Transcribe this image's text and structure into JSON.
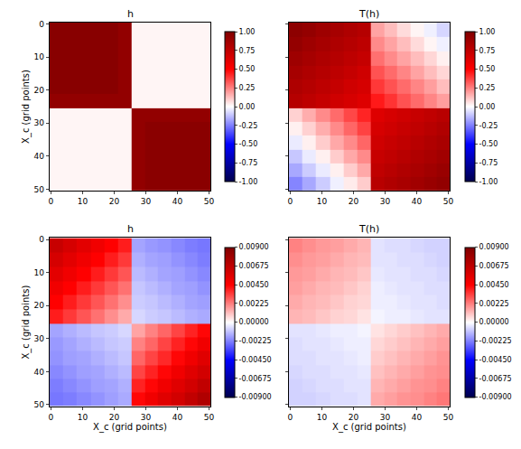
{
  "chart_data": [
    {
      "type": "heatmap",
      "title": "h",
      "ylabel": "X_c (grid points)",
      "grid": false,
      "x_edges": [
        -0.5,
        3.8,
        8.2,
        12.5,
        16.8,
        21.2,
        25.5,
        29.7,
        33.8,
        38.0,
        42.2,
        46.3,
        50.5
      ],
      "y_edges": [
        -0.5,
        3.8,
        8.2,
        12.5,
        16.8,
        21.2,
        25.5,
        29.7,
        33.8,
        38.0,
        42.2,
        46.3,
        50.5
      ],
      "xlim": [
        -0.5,
        50.5
      ],
      "ylim": [
        50.5,
        -0.5
      ],
      "xticks": [
        0,
        10,
        20,
        30,
        40,
        50
      ],
      "yticks": [
        0,
        10,
        20,
        30,
        40,
        50
      ],
      "colorbar_range": [
        -1,
        1
      ],
      "colorbar_ticks": [
        {
          "value": -1,
          "label": "-1.00"
        },
        {
          "value": -0.75,
          "label": "-0.75"
        },
        {
          "value": -0.5,
          "label": "-0.50"
        },
        {
          "value": -0.25,
          "label": "-0.25"
        },
        {
          "value": 0,
          "label": "0.00"
        },
        {
          "value": 0.25,
          "label": "0.25"
        },
        {
          "value": 0.5,
          "label": "0.50"
        },
        {
          "value": 0.75,
          "label": "0.75"
        },
        {
          "value": 1,
          "label": "1.00"
        }
      ],
      "z": [
        [
          0.97,
          0.97,
          0.97,
          0.97,
          0.97,
          0.93,
          0.02,
          0.02,
          0.02,
          0.02,
          0.02,
          0.02
        ],
        [
          0.97,
          0.97,
          0.97,
          0.97,
          0.97,
          0.93,
          0.02,
          0.02,
          0.02,
          0.02,
          0.02,
          0.02
        ],
        [
          0.97,
          0.97,
          0.97,
          0.97,
          0.97,
          0.93,
          0.02,
          0.02,
          0.02,
          0.02,
          0.02,
          0.02
        ],
        [
          0.97,
          0.97,
          0.97,
          0.97,
          0.97,
          0.93,
          0.02,
          0.02,
          0.02,
          0.02,
          0.02,
          0.02
        ],
        [
          0.97,
          0.97,
          0.97,
          0.97,
          0.97,
          0.93,
          0.02,
          0.02,
          0.02,
          0.02,
          0.02,
          0.02
        ],
        [
          0.93,
          0.93,
          0.93,
          0.93,
          0.93,
          0.93,
          0.02,
          0.02,
          0.02,
          0.02,
          0.02,
          0.02
        ],
        [
          0.02,
          0.02,
          0.02,
          0.02,
          0.02,
          0.02,
          0.93,
          0.93,
          0.93,
          0.93,
          0.93,
          0.93
        ],
        [
          0.02,
          0.02,
          0.02,
          0.02,
          0.02,
          0.02,
          0.93,
          0.96,
          0.96,
          0.96,
          0.96,
          0.96
        ],
        [
          0.02,
          0.02,
          0.02,
          0.02,
          0.02,
          0.02,
          0.93,
          0.96,
          0.96,
          0.96,
          0.96,
          0.96
        ],
        [
          0.02,
          0.02,
          0.02,
          0.02,
          0.02,
          0.02,
          0.93,
          0.96,
          0.96,
          0.96,
          0.96,
          0.96
        ],
        [
          0.02,
          0.02,
          0.02,
          0.02,
          0.02,
          0.02,
          0.93,
          0.96,
          0.96,
          0.96,
          0.96,
          0.96
        ],
        [
          0.02,
          0.02,
          0.02,
          0.02,
          0.02,
          0.02,
          0.93,
          0.96,
          0.96,
          0.96,
          0.96,
          0.96
        ]
      ]
    },
    {
      "type": "heatmap",
      "title": "T(h)",
      "grid": false,
      "tick_labels": "x",
      "x_edges": [
        -0.5,
        3.8,
        8.2,
        12.5,
        16.8,
        21.2,
        25.5,
        29.7,
        33.8,
        38.0,
        42.2,
        46.3,
        50.5
      ],
      "y_edges": [
        -0.5,
        3.8,
        8.2,
        12.5,
        16.8,
        21.2,
        25.5,
        29.7,
        33.8,
        38.0,
        42.2,
        46.3,
        50.5
      ],
      "xlim": [
        -0.5,
        50.5
      ],
      "ylim": [
        50.5,
        -0.5
      ],
      "xticks": [
        0,
        10,
        20,
        30,
        40,
        50
      ],
      "yticks": [
        0,
        10,
        20,
        30,
        40,
        50
      ],
      "colorbar_range": [
        -1,
        1
      ],
      "colorbar_ticks": [
        {
          "value": -1,
          "label": "-1.00"
        },
        {
          "value": -0.75,
          "label": "-0.75"
        },
        {
          "value": -0.5,
          "label": "-0.50"
        },
        {
          "value": -0.25,
          "label": "-0.25"
        },
        {
          "value": 0,
          "label": "0.00"
        },
        {
          "value": 0.25,
          "label": "0.25"
        },
        {
          "value": 0.5,
          "label": "0.50"
        },
        {
          "value": 0.75,
          "label": "0.75"
        },
        {
          "value": 1,
          "label": "1.00"
        }
      ],
      "z": [
        [
          0.95,
          0.92,
          0.88,
          0.85,
          0.82,
          0.79,
          0.18,
          0.13,
          0.07,
          0.02,
          -0.03,
          -0.08
        ],
        [
          0.92,
          0.88,
          0.85,
          0.82,
          0.79,
          0.76,
          0.23,
          0.18,
          0.13,
          0.07,
          0.02,
          -0.03
        ],
        [
          0.88,
          0.85,
          0.82,
          0.79,
          0.76,
          0.73,
          0.28,
          0.23,
          0.18,
          0.13,
          0.08,
          0.03
        ],
        [
          0.85,
          0.82,
          0.79,
          0.76,
          0.73,
          0.69,
          0.34,
          0.29,
          0.24,
          0.18,
          0.13,
          0.08
        ],
        [
          0.82,
          0.79,
          0.76,
          0.73,
          0.69,
          0.66,
          0.39,
          0.34,
          0.29,
          0.24,
          0.19,
          0.13
        ],
        [
          0.79,
          0.76,
          0.73,
          0.69,
          0.66,
          0.63,
          0.45,
          0.4,
          0.34,
          0.29,
          0.24,
          0.19
        ],
        [
          0.09,
          0.16,
          0.23,
          0.29,
          0.36,
          0.43,
          0.63,
          0.66,
          0.69,
          0.72,
          0.75,
          0.78
        ],
        [
          0.03,
          0.09,
          0.16,
          0.23,
          0.3,
          0.37,
          0.66,
          0.69,
          0.72,
          0.75,
          0.78,
          0.81
        ],
        [
          -0.04,
          0.03,
          0.1,
          0.17,
          0.23,
          0.3,
          0.69,
          0.72,
          0.75,
          0.78,
          0.81,
          0.84
        ],
        [
          -0.11,
          -0.04,
          0.03,
          0.1,
          0.17,
          0.23,
          0.72,
          0.75,
          0.78,
          0.81,
          0.84,
          0.87
        ],
        [
          -0.17,
          -0.1,
          -0.04,
          0.03,
          0.1,
          0.17,
          0.75,
          0.78,
          0.81,
          0.84,
          0.87,
          0.9
        ],
        [
          -0.24,
          -0.17,
          -0.1,
          -0.03,
          0.04,
          0.1,
          0.78,
          0.81,
          0.84,
          0.87,
          0.9,
          0.93
        ]
      ]
    },
    {
      "type": "heatmap",
      "title": "h",
      "xlabel": "X_c (grid points)",
      "ylabel": "X_c (grid points)",
      "grid": false,
      "x_edges": [
        -0.5,
        3.8,
        8.2,
        12.5,
        16.8,
        21.2,
        25.5,
        29.7,
        33.8,
        38.0,
        42.2,
        46.3,
        50.5
      ],
      "y_edges": [
        -0.5,
        3.8,
        8.2,
        12.5,
        16.8,
        21.2,
        25.5,
        29.7,
        33.8,
        38.0,
        42.2,
        46.3,
        50.5
      ],
      "xlim": [
        -0.5,
        50.5
      ],
      "ylim": [
        50.5,
        -0.5
      ],
      "xticks": [
        0,
        10,
        20,
        30,
        40,
        50
      ],
      "yticks": [
        0,
        10,
        20,
        30,
        40,
        50
      ],
      "colorbar_range": [
        -0.009,
        0.009
      ],
      "colorbar_ticks": [
        {
          "value": -0.009,
          "label": "-0.00900"
        },
        {
          "value": -0.00675,
          "label": "-0.00675"
        },
        {
          "value": -0.0045,
          "label": "-0.00450"
        },
        {
          "value": -0.00225,
          "label": "-0.00225"
        },
        {
          "value": 0,
          "label": "0.00000"
        },
        {
          "value": 0.00225,
          "label": "0.00225"
        },
        {
          "value": 0.0045,
          "label": "0.00450"
        },
        {
          "value": 0.00675,
          "label": "0.00675"
        },
        {
          "value": 0.009,
          "label": "0.00900"
        }
      ],
      "z": [
        [
          0.0065,
          0.006,
          0.0055,
          0.005,
          0.0045,
          0.004,
          -0.0016,
          -0.0018,
          -0.0019,
          -0.0021,
          -0.0023,
          -0.0024
        ],
        [
          0.006,
          0.0055,
          0.005,
          0.0045,
          0.004,
          0.0035,
          -0.0014,
          -0.0016,
          -0.0017,
          -0.0019,
          -0.0021,
          -0.0023
        ],
        [
          0.0055,
          0.005,
          0.0045,
          0.004,
          0.0035,
          0.003,
          -0.0012,
          -0.0014,
          -0.0016,
          -0.0017,
          -0.0019,
          -0.0021
        ],
        [
          0.005,
          0.0045,
          0.004,
          0.0035,
          0.003,
          0.0025,
          -0.001,
          -0.0012,
          -0.0014,
          -0.0016,
          -0.0017,
          -0.0019
        ],
        [
          0.0045,
          0.004,
          0.0035,
          0.003,
          0.0025,
          0.002,
          -0.0009,
          -0.001,
          -0.0012,
          -0.0014,
          -0.0016,
          -0.0017
        ],
        [
          0.004,
          0.0035,
          0.003,
          0.0025,
          0.002,
          0.0015,
          -0.0007,
          -0.0009,
          -0.001,
          -0.0012,
          -0.0014,
          -0.0015
        ],
        [
          -0.0016,
          -0.0014,
          -0.0012,
          -0.001,
          -0.0009,
          -0.0007,
          0.0016,
          0.0022,
          0.0027,
          0.0033,
          0.0039,
          0.0044
        ],
        [
          -0.0018,
          -0.0016,
          -0.0014,
          -0.0012,
          -0.001,
          -0.0009,
          0.0022,
          0.0027,
          0.0033,
          0.0039,
          0.0044,
          0.005
        ],
        [
          -0.0019,
          -0.0017,
          -0.0016,
          -0.0014,
          -0.0012,
          -0.001,
          0.0027,
          0.0033,
          0.0038,
          0.0044,
          0.005,
          0.0056
        ],
        [
          -0.0021,
          -0.0019,
          -0.0017,
          -0.0016,
          -0.0014,
          -0.0012,
          0.0033,
          0.0039,
          0.0044,
          0.005,
          0.0056,
          0.0061
        ],
        [
          -0.0023,
          -0.0021,
          -0.0019,
          -0.0017,
          -0.0016,
          -0.0014,
          0.0039,
          0.0044,
          0.005,
          0.0056,
          0.0061,
          0.0067
        ],
        [
          -0.0024,
          -0.0023,
          -0.0021,
          -0.0019,
          -0.0017,
          -0.0015,
          0.0044,
          0.005,
          0.0056,
          0.0061,
          0.0067,
          0.0073
        ]
      ]
    },
    {
      "type": "heatmap",
      "title": "T(h)",
      "xlabel": "X_c (grid points)",
      "grid": false,
      "tick_labels": "x",
      "x_edges": [
        -0.5,
        3.8,
        8.2,
        12.5,
        16.8,
        21.2,
        25.5,
        29.7,
        33.8,
        38.0,
        42.2,
        46.3,
        50.5
      ],
      "y_edges": [
        -0.5,
        3.8,
        8.2,
        12.5,
        16.8,
        21.2,
        25.5,
        29.7,
        33.8,
        38.0,
        42.2,
        46.3,
        50.5
      ],
      "xlim": [
        -0.5,
        50.5
      ],
      "ylim": [
        50.5,
        -0.5
      ],
      "xticks": [
        0,
        10,
        20,
        30,
        40,
        50
      ],
      "yticks": [
        0,
        10,
        20,
        30,
        40,
        50
      ],
      "colorbar_range": [
        -0.009,
        0.009
      ],
      "colorbar_ticks": [
        {
          "value": -0.009,
          "label": "-0.00900"
        },
        {
          "value": -0.00675,
          "label": "-0.00675"
        },
        {
          "value": -0.0045,
          "label": "-0.00450"
        },
        {
          "value": -0.00225,
          "label": "-0.00225"
        },
        {
          "value": 0,
          "label": "0.00000"
        },
        {
          "value": 0.00225,
          "label": "0.00225"
        },
        {
          "value": 0.0045,
          "label": "0.00450"
        },
        {
          "value": 0.00675,
          "label": "0.00675"
        },
        {
          "value": 0.009,
          "label": "0.00900"
        }
      ],
      "z": [
        [
          0.0022,
          0.002,
          0.0018,
          0.0017,
          0.0015,
          0.0013,
          -0.0005,
          -0.0006,
          -0.0006,
          -0.0007,
          -0.0008,
          -0.0008
        ],
        [
          0.002,
          0.0018,
          0.0017,
          0.0015,
          0.0013,
          0.0012,
          -0.0005,
          -0.0005,
          -0.0006,
          -0.0006,
          -0.0007,
          -0.0008
        ],
        [
          0.0018,
          0.0017,
          0.0015,
          0.0013,
          0.0012,
          0.001,
          -0.0004,
          -0.0005,
          -0.0005,
          -0.0006,
          -0.0006,
          -0.0007
        ],
        [
          0.0017,
          0.0015,
          0.0013,
          0.0012,
          0.001,
          0.0008,
          -0.0003,
          -0.0004,
          -0.0005,
          -0.0005,
          -0.0006,
          -0.0006
        ],
        [
          0.0015,
          0.0013,
          0.0012,
          0.001,
          0.0008,
          0.0007,
          -0.0003,
          -0.0003,
          -0.0004,
          -0.0005,
          -0.0005,
          -0.0006
        ],
        [
          0.0013,
          0.0012,
          0.001,
          0.0008,
          0.0007,
          0.0005,
          -0.0002,
          -0.0003,
          -0.0003,
          -0.0004,
          -0.0005,
          -0.0005
        ],
        [
          -0.0005,
          -0.0005,
          -0.0004,
          -0.0003,
          -0.0003,
          -0.0002,
          0.0005,
          0.0007,
          0.0009,
          0.0011,
          0.0013,
          0.0015
        ],
        [
          -0.0006,
          -0.0005,
          -0.0005,
          -0.0004,
          -0.0003,
          -0.0003,
          0.0007,
          0.0009,
          0.0011,
          0.0013,
          0.0015,
          0.0017
        ],
        [
          -0.0006,
          -0.0006,
          -0.0005,
          -0.0005,
          -0.0004,
          -0.0003,
          0.0009,
          0.0011,
          0.0013,
          0.0015,
          0.0017,
          0.0019
        ],
        [
          -0.0007,
          -0.0006,
          -0.0006,
          -0.0005,
          -0.0005,
          -0.0004,
          0.0011,
          0.0013,
          0.0015,
          0.0017,
          0.0019,
          0.002
        ],
        [
          -0.0008,
          -0.0007,
          -0.0006,
          -0.0006,
          -0.0005,
          -0.0005,
          0.0013,
          0.0015,
          0.0017,
          0.0019,
          0.002,
          0.0022
        ],
        [
          -0.0008,
          -0.0008,
          -0.0007,
          -0.0006,
          -0.0006,
          -0.0005,
          0.0015,
          0.0017,
          0.0019,
          0.002,
          0.0022,
          0.0024
        ]
      ]
    }
  ]
}
